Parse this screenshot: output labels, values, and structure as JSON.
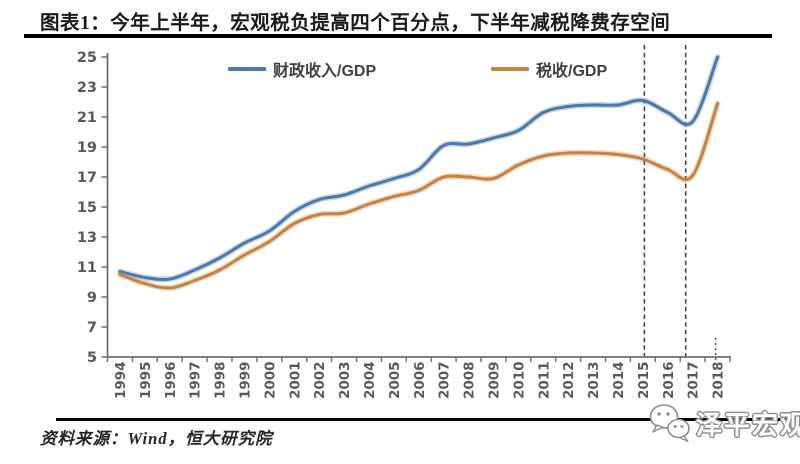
{
  "header": {
    "title": "图表1：今年上半年，宏观税负提高四个百分点，下半年减税降费存空间"
  },
  "chart_data": {
    "type": "line",
    "title": "图表1：今年上半年，宏观税负提高四个百分点，下半年减税降费存空间",
    "categories": [
      "1994",
      "1995",
      "1996",
      "1997",
      "1998",
      "1999",
      "2000",
      "2001",
      "2002",
      "2003",
      "2004",
      "2005",
      "2006",
      "2007",
      "2008",
      "2009",
      "2010",
      "2011",
      "2012",
      "2013",
      "2014",
      "2015",
      "2016",
      "2017",
      "2018"
    ],
    "series": [
      {
        "name": "财政收入/GDP",
        "color": "#4a79ad",
        "values": [
          10.7,
          10.3,
          10.2,
          10.8,
          11.6,
          12.6,
          13.4,
          14.7,
          15.5,
          15.8,
          16.4,
          16.9,
          17.5,
          19.1,
          19.2,
          19.6,
          20.1,
          21.3,
          21.7,
          21.8,
          21.8,
          22.1,
          21.3,
          20.7,
          25.0
        ]
      },
      {
        "name": "税收/GDP",
        "color": "#c8823f",
        "values": [
          10.5,
          9.9,
          9.6,
          10.1,
          10.8,
          11.8,
          12.7,
          13.9,
          14.5,
          14.6,
          15.2,
          15.7,
          16.1,
          17.0,
          17.0,
          16.9,
          17.8,
          18.4,
          18.6,
          18.6,
          18.5,
          18.2,
          17.5,
          17.1,
          21.9
        ]
      }
    ],
    "xlabel": "",
    "ylabel": "",
    "ylim": [
      5,
      25
    ],
    "ytick_step": 2,
    "yticks": [
      5,
      7,
      9,
      11,
      13,
      15,
      17,
      19,
      21,
      23,
      25
    ],
    "grid": false,
    "legend_position": "top-inside",
    "annotations": {
      "dashed_vlines_at": [
        "2015",
        "2017"
      ],
      "dotted_stub_at": "2018"
    },
    "axis_color": "#6e6e6e",
    "tick_label_color": "#595959",
    "dashed_line_color": "#3f3f3f"
  },
  "footer": {
    "source": "资料来源：Wind，恒大研究院",
    "logo_text": "泽平宏观"
  },
  "icons": {
    "wechat_bubbles_icon": "two chat bubbles watermark"
  }
}
